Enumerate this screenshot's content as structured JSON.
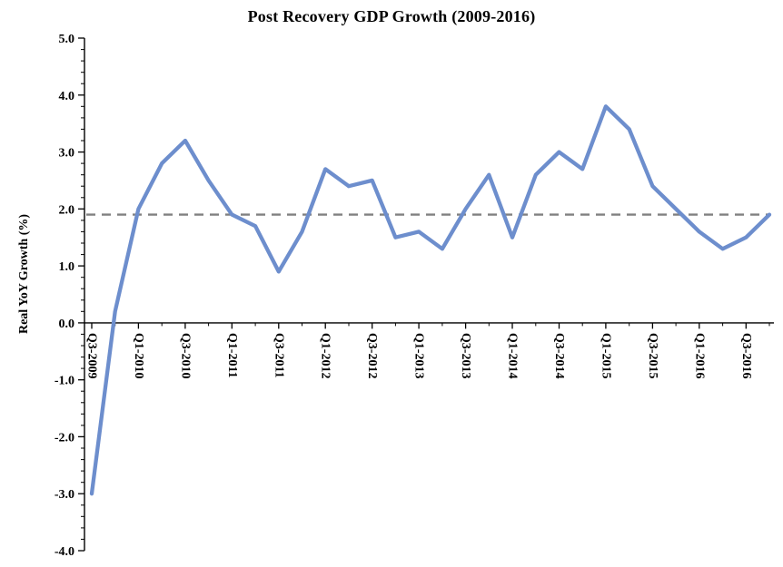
{
  "chart_data": {
    "type": "line",
    "title": "Post Recovery GDP Growth  (2009-2016)",
    "ylabel": "Real YoY Growth (%)",
    "xlabel": "",
    "ylim": [
      -4.0,
      5.0
    ],
    "y_tick_step": 1.0,
    "y_minor_tick_step": 0.2,
    "y_tick_labels": [
      "5.0",
      "4.0",
      "3.0",
      "2.0",
      "1.0",
      "0.0",
      "-1.0",
      "-2.0",
      "-3.0",
      "-4.0"
    ],
    "categories": [
      "Q3-2009",
      "Q4-2009",
      "Q1-2010",
      "Q2-2010",
      "Q3-2010",
      "Q4-2010",
      "Q1-2011",
      "Q2-2011",
      "Q3-2011",
      "Q4-2011",
      "Q1-2012",
      "Q2-2012",
      "Q3-2012",
      "Q4-2012",
      "Q1-2013",
      "Q2-2013",
      "Q3-2013",
      "Q4-2013",
      "Q1-2014",
      "Q2-2014",
      "Q3-2014",
      "Q4-2014",
      "Q1-2015",
      "Q2-2015",
      "Q3-2015",
      "Q4-2015",
      "Q1-2016",
      "Q2-2016",
      "Q3-2016",
      "Q4-2016"
    ],
    "x_label_every": 2,
    "x_tick_labels": [
      "Q3-2009",
      "Q1-2010",
      "Q3-2010",
      "Q1-2011",
      "Q3-2011",
      "Q1-2012",
      "Q3-2012",
      "Q1-2013",
      "Q3-2013",
      "Q1-2014",
      "Q3-2014",
      "Q1-2015",
      "Q3-2015",
      "Q1-2016",
      "Q3-2016"
    ],
    "series": [
      {
        "name": "Real YoY Growth",
        "values": [
          -3.0,
          0.2,
          2.0,
          2.8,
          3.2,
          2.5,
          1.9,
          1.7,
          0.9,
          1.6,
          2.7,
          2.4,
          2.5,
          1.5,
          1.6,
          1.3,
          2.0,
          2.6,
          1.5,
          2.6,
          3.0,
          2.7,
          3.8,
          3.4,
          2.4,
          2.0,
          1.6,
          1.3,
          1.5,
          1.9
        ]
      }
    ],
    "reference_line": {
      "value": 1.9,
      "style": "dashed",
      "color": "#808080"
    },
    "line_color": "#6d8ecd",
    "axis_color": "#000000",
    "grid": false,
    "legend": "none"
  }
}
